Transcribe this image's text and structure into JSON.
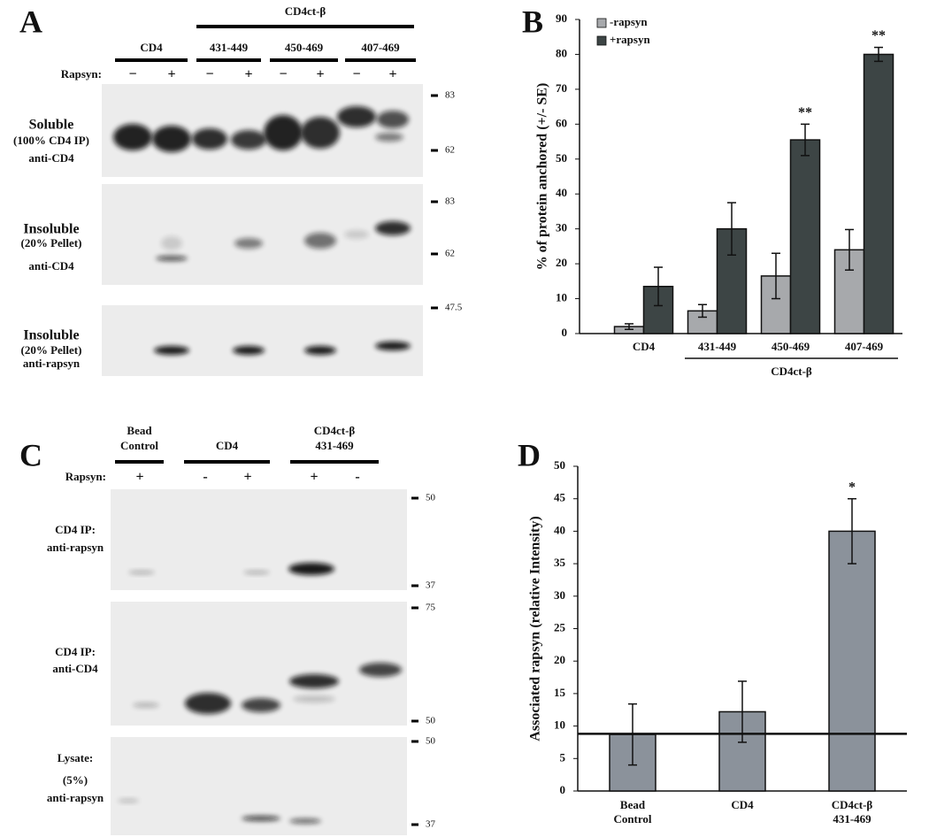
{
  "panel_labels": [
    "A",
    "B",
    "C",
    "D"
  ],
  "panel_a": {
    "super_header": "CD4ct-β",
    "groups": [
      "CD4",
      "431-449",
      "450-469",
      "407-469"
    ],
    "rapsyn_label": "Rapsyn:",
    "rapsyn_signs": [
      "−",
      "+",
      "−",
      "+",
      "−",
      "+",
      "−",
      "+"
    ],
    "blots": [
      {
        "labels": [
          "Soluble",
          "(100% CD4 IP)",
          "anti-CD4"
        ],
        "markers": [
          "83",
          "62"
        ]
      },
      {
        "labels": [
          "Insoluble",
          "(20% Pellet)",
          "anti-CD4"
        ],
        "markers": [
          "83",
          "62"
        ]
      },
      {
        "labels": [
          "Insoluble",
          "(20% Pellet)",
          "anti-rapsyn"
        ],
        "markers": [
          "47.5"
        ]
      }
    ]
  },
  "panel_c": {
    "groups": [
      [
        "Bead",
        "Control"
      ],
      [
        "CD4"
      ],
      [
        "CD4ct-β",
        "431-469"
      ]
    ],
    "rapsyn_label": "Rapsyn:",
    "rapsyn_signs": [
      "+",
      "-",
      "+",
      "+",
      "-"
    ],
    "blots": [
      {
        "labels": [
          "CD4 IP:",
          "anti-rapsyn"
        ],
        "markers": [
          "50",
          "37"
        ]
      },
      {
        "labels": [
          "CD4 IP:",
          "anti-CD4"
        ],
        "markers": [
          "75",
          "50"
        ]
      },
      {
        "labels": [
          "Lysate:",
          "(5%)",
          "anti-rapsyn"
        ],
        "markers": [
          "50",
          "37"
        ]
      }
    ]
  },
  "chart_data": [
    {
      "type": "bar",
      "y_label": "% of protein anchored (+/- SE)",
      "categories": [
        "CD4",
        "431-449",
        "450-469",
        "407-469"
      ],
      "category_group": "CD4ct-β",
      "series": [
        {
          "name": "-rapsyn",
          "color": "#a7a9ac",
          "values": [
            2,
            6.5,
            16.5,
            24
          ],
          "errors": [
            0.8,
            1.8,
            6.5,
            5.8
          ],
          "annotations": [
            null,
            null,
            null,
            null
          ]
        },
        {
          "name": "+rapsyn",
          "color": "#3d4545",
          "values": [
            13.5,
            30,
            55.5,
            80
          ],
          "errors": [
            5.5,
            7.5,
            4.5,
            2
          ],
          "annotations": [
            null,
            null,
            "**",
            "**"
          ]
        }
      ],
      "ylim": [
        0,
        90
      ],
      "yticks": [
        0,
        10,
        20,
        30,
        40,
        50,
        60,
        70,
        80,
        90
      ],
      "legend": "top-left"
    },
    {
      "type": "bar",
      "y_label": "Associated rapsyn (relative Intensity)",
      "categories": [
        "Bead Control",
        "CD4",
        "CD4ct-β 431-469"
      ],
      "values": [
        8.7,
        12.2,
        40
      ],
      "errors": [
        4.7,
        4.7,
        5
      ],
      "annotations": [
        null,
        null,
        "*"
      ],
      "color": "#8b929b",
      "reference_line": 8.8,
      "ylim": [
        0,
        50
      ],
      "yticks": [
        0,
        5,
        10,
        15,
        20,
        25,
        30,
        35,
        40,
        45,
        50
      ]
    }
  ]
}
